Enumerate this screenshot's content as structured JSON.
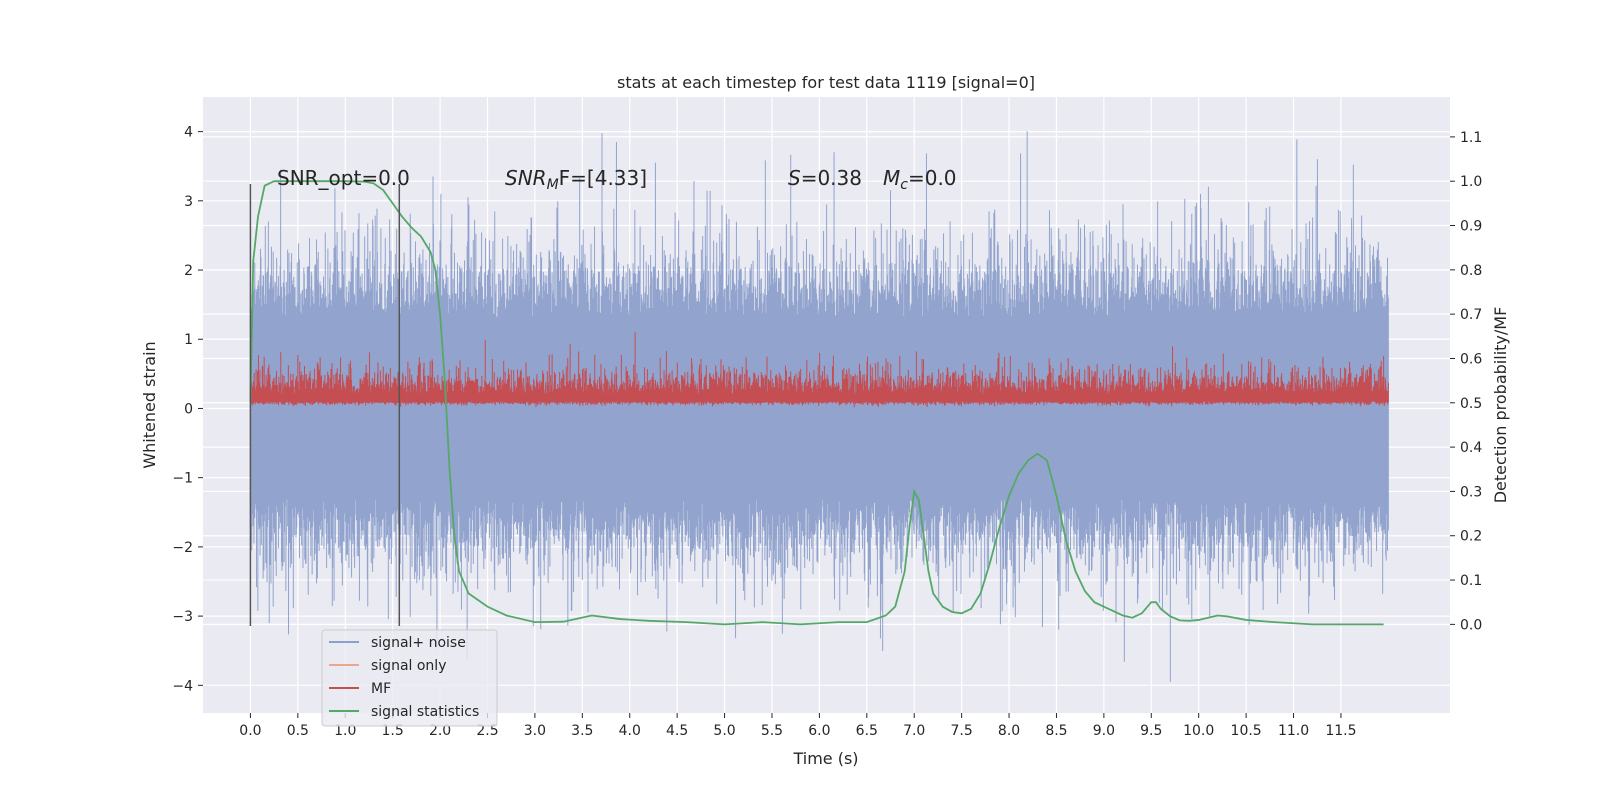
{
  "chart_data": {
    "type": "line",
    "title": "stats at each timestep for test data 1119 [signal=0]",
    "xlabel": "Time (s)",
    "ylabel_left": "Whitened strain",
    "ylabel_right": "Detection probability/MF",
    "xlim": [
      -0.5,
      12.65
    ],
    "ylim_left": [
      -4.4,
      4.5
    ],
    "ylim_right": [
      -0.2,
      1.19
    ],
    "x_ticks": [
      "0.0",
      "0.5",
      "1.0",
      "1.5",
      "2.0",
      "2.5",
      "3.0",
      "3.5",
      "4.0",
      "4.5",
      "5.0",
      "5.5",
      "6.0",
      "6.5",
      "7.0",
      "7.5",
      "8.0",
      "8.5",
      "9.0",
      "9.5",
      "10.0",
      "10.5",
      "11.0",
      "11.5"
    ],
    "y_ticks_left": [
      "4",
      "3",
      "2",
      "1",
      "0",
      "−1",
      "−2",
      "−3",
      "−4"
    ],
    "y_ticks_right": [
      "1.1",
      "1.0",
      "0.9",
      "0.8",
      "0.7",
      "0.6",
      "0.5",
      "0.4",
      "0.3",
      "0.2",
      "0.1",
      "0.0"
    ],
    "grid": true,
    "legend_placement": "lower-left",
    "annotations": {
      "snr_opt": "SNR_opt=0.0",
      "snr_mf_main": "SNR",
      "snr_mf_sub": "M",
      "snr_mf_rest": "F=[4.33]",
      "s_label": "S",
      "s_value": "=0.38",
      "mc_label": "M",
      "mc_sub": "c",
      "mc_value": "=0.0"
    },
    "vertical_markers": [
      0.0,
      1.57
    ],
    "series": [
      {
        "name": "signal+ noise",
        "color": "#8da0cb",
        "axis": "left",
        "duration": 12.0,
        "envelope_upper": 1.3,
        "envelope_lower": -1.3
      },
      {
        "name": "signal only",
        "color": "#e8a889",
        "axis": "left",
        "values": []
      },
      {
        "name": "MF",
        "color": "#c44e52",
        "axis": "right",
        "duration": 12.0
      },
      {
        "name": "signal statistics",
        "color": "#55a868",
        "axis": "right",
        "x": [
          0.0,
          0.03,
          0.08,
          0.15,
          0.25,
          0.4,
          0.6,
          0.8,
          1.0,
          1.2,
          1.3,
          1.4,
          1.5,
          1.6,
          1.7,
          1.8,
          1.9,
          1.95,
          2.0,
          2.05,
          2.1,
          2.15,
          2.2,
          2.3,
          2.5,
          2.7,
          3.0,
          3.3,
          3.6,
          3.9,
          4.2,
          4.6,
          5.0,
          5.4,
          5.8,
          6.2,
          6.5,
          6.7,
          6.8,
          6.9,
          6.95,
          7.0,
          7.05,
          7.1,
          7.15,
          7.2,
          7.3,
          7.4,
          7.5,
          7.6,
          7.7,
          7.8,
          7.9,
          8.0,
          8.1,
          8.2,
          8.3,
          8.4,
          8.5,
          8.6,
          8.7,
          8.8,
          8.9,
          9.0,
          9.1,
          9.2,
          9.3,
          9.4,
          9.5,
          9.55,
          9.6,
          9.7,
          9.8,
          9.9,
          10.0,
          10.1,
          10.2,
          10.3,
          10.5,
          10.8,
          11.2,
          11.6,
          11.95
        ],
        "values": [
          0.5,
          0.82,
          0.92,
          0.99,
          1.0,
          1.0,
          1.0,
          1.0,
          1.0,
          0.999,
          0.995,
          0.98,
          0.95,
          0.92,
          0.895,
          0.875,
          0.84,
          0.8,
          0.7,
          0.55,
          0.35,
          0.2,
          0.12,
          0.07,
          0.04,
          0.02,
          0.005,
          0.006,
          0.02,
          0.012,
          0.008,
          0.005,
          0.0,
          0.005,
          0.0,
          0.005,
          0.005,
          0.02,
          0.04,
          0.12,
          0.22,
          0.3,
          0.28,
          0.2,
          0.12,
          0.07,
          0.04,
          0.028,
          0.025,
          0.035,
          0.07,
          0.14,
          0.22,
          0.29,
          0.34,
          0.37,
          0.385,
          0.37,
          0.29,
          0.19,
          0.12,
          0.075,
          0.05,
          0.04,
          0.03,
          0.02,
          0.015,
          0.025,
          0.05,
          0.05,
          0.035,
          0.018,
          0.009,
          0.008,
          0.01,
          0.015,
          0.02,
          0.018,
          0.01,
          0.005,
          0.0,
          0.0,
          0.0
        ]
      }
    ]
  }
}
